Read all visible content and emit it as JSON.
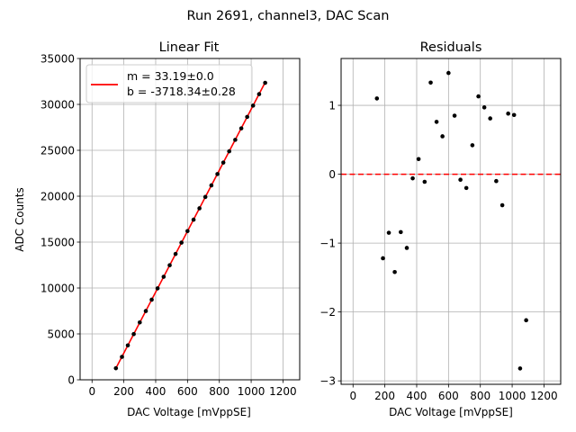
{
  "figure": {
    "suptitle": "Run 2691, channel3, DAC Scan"
  },
  "chart_data": [
    {
      "type": "scatter",
      "title": "Linear Fit",
      "xlabel": "DAC Voltage [mVppSE]",
      "ylabel": "ADC Counts",
      "xlim": [
        -75,
        1305
      ],
      "ylim": [
        0,
        35000
      ],
      "xticks": [
        0,
        200,
        400,
        600,
        800,
        1000,
        1200
      ],
      "yticks": [
        0,
        5000,
        10000,
        15000,
        20000,
        25000,
        30000,
        35000
      ],
      "grid": true,
      "legend": {
        "placement": "top-left",
        "entries": [
          "m = 33.19±0.0",
          "b = -3718.34±0.28"
        ]
      },
      "fit": {
        "slope": 33.19,
        "intercept": -3718.34,
        "x_range": [
          150,
          1090
        ],
        "color": "#ff0000"
      },
      "points": {
        "x": [
          150,
          188,
          225,
          262,
          300,
          338,
          375,
          412,
          450,
          488,
          525,
          562,
          600,
          638,
          675,
          712,
          750,
          788,
          825,
          862,
          900,
          938,
          975,
          1012,
          1050,
          1088
        ],
        "y": [
          1260,
          2500,
          3750,
          4980,
          6250,
          7490,
          8730,
          9960,
          11220,
          12480,
          13710,
          14940,
          16200,
          17440,
          18680,
          19920,
          21180,
          22410,
          23660,
          24890,
          26140,
          27390,
          28640,
          29870,
          31120,
          32350
        ],
        "color": "#000000"
      }
    },
    {
      "type": "scatter",
      "title": "Residuals",
      "xlabel": "DAC Voltage [mVppSE]",
      "ylabel": "",
      "xlim": [
        -75,
        1305
      ],
      "ylim": [
        -3.05,
        1.68
      ],
      "xticks": [
        0,
        200,
        400,
        600,
        800,
        1000,
        1200
      ],
      "yticks": [
        -3,
        -2,
        -1,
        0,
        1
      ],
      "grid": true,
      "reference_line": {
        "y": 0,
        "style": "dashed",
        "color": "#ff0000"
      },
      "points": {
        "x": [
          150,
          188,
          225,
          262,
          300,
          338,
          375,
          412,
          450,
          488,
          525,
          562,
          600,
          638,
          675,
          712,
          750,
          788,
          825,
          862,
          900,
          938,
          975,
          1012,
          1050,
          1088
        ],
        "y": [
          1.1,
          -1.22,
          -0.85,
          -1.42,
          -0.84,
          -1.07,
          -0.06,
          0.22,
          -0.11,
          1.33,
          0.76,
          0.55,
          1.47,
          0.85,
          -0.08,
          -0.2,
          0.42,
          1.13,
          0.97,
          0.81,
          -0.1,
          -0.45,
          0.88,
          0.86,
          -2.82,
          -2.12
        ],
        "color": "#000000"
      }
    }
  ]
}
